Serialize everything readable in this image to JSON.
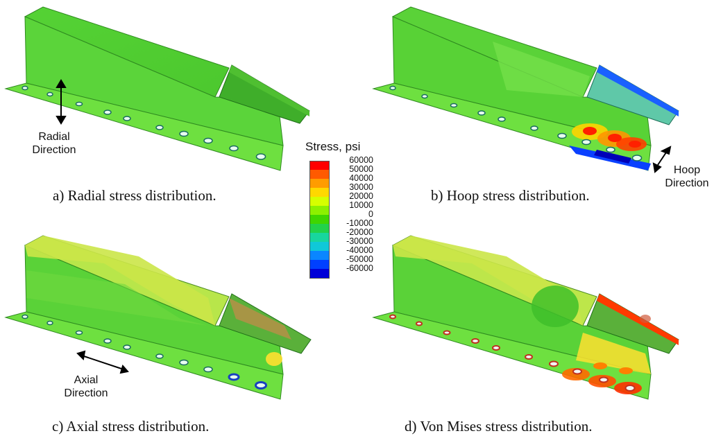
{
  "legend": {
    "title": "Stress, psi",
    "ticks": [
      "60000",
      "50000",
      "40000",
      "30000",
      "20000",
      "10000",
      "0",
      "-10000",
      "-20000",
      "-30000",
      "-40000",
      "-50000",
      "-60000"
    ],
    "colors": [
      "#ff0000",
      "#ff5a00",
      "#ff9c00",
      "#ffd800",
      "#d6ff00",
      "#8cf000",
      "#3fd600",
      "#22d24a",
      "#18d69e",
      "#10c8d8",
      "#0a86ff",
      "#0040ff",
      "#0000d8"
    ]
  },
  "panels": [
    {
      "id": "a",
      "caption": "a) Radial stress distribution.",
      "direction": "Radial\nDirection",
      "direction_line1": "Radial",
      "direction_line2": "Direction"
    },
    {
      "id": "b",
      "caption": "b) Hoop stress distribution.",
      "direction_line1": "Hoop",
      "direction_line2": "Direction"
    },
    {
      "id": "c",
      "caption": "c) Axial stress distribution.",
      "direction_line1": "Axial",
      "direction_line2": "Direction"
    },
    {
      "id": "d",
      "caption": "d) Von Mises stress distribution."
    }
  ]
}
